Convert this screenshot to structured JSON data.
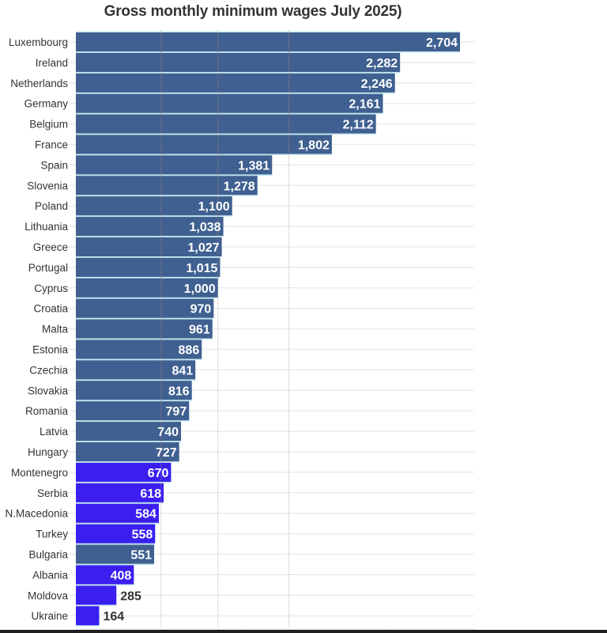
{
  "chart_data": {
    "type": "bar",
    "orientation": "horizontal",
    "title": "Gross monthly minimum wages July 2025)",
    "xlabel": "",
    "ylabel": "",
    "xlim": [
      0,
      3000
    ],
    "grid": true,
    "legend": "none",
    "reference_lines": [
      600,
      1000,
      1500
    ],
    "colors": {
      "eu": "#3F6090",
      "non_eu": "#3A1FF0",
      "separator": "#C4E7F0",
      "label_inside": "#ffffff",
      "label_outside": "#333333"
    },
    "categories": [
      "Luxembourg",
      "Ireland",
      "Netherlands",
      "Germany",
      "Belgium",
      "France",
      "Spain",
      "Slovenia",
      "Poland",
      "Lithuania",
      "Greece",
      "Portugal",
      "Cyprus",
      "Croatia",
      "Malta",
      "Estonia",
      "Czechia",
      "Slovakia",
      "Romania",
      "Latvia",
      "Hungary",
      "Montenegro",
      "Serbia",
      "N.Macedonia",
      "Turkey",
      "Bulgaria",
      "Albania",
      "Moldova",
      "Ukraine"
    ],
    "values": [
      2704,
      2282,
      2246,
      2161,
      2112,
      1802,
      1381,
      1278,
      1100,
      1038,
      1027,
      1015,
      1000,
      970,
      961,
      886,
      841,
      816,
      797,
      740,
      727,
      670,
      618,
      584,
      558,
      551,
      408,
      285,
      164
    ],
    "value_labels": [
      "2,704",
      "2,282",
      "2,246",
      "2,161",
      "2,112",
      "1,802",
      "1,381",
      "1,278",
      "1,100",
      "1,038",
      "1,027",
      "1,015",
      "1,000",
      "970",
      "961",
      "886",
      "841",
      "816",
      "797",
      "740",
      "727",
      "670",
      "618",
      "584",
      "558",
      "551",
      "408",
      "285",
      "164"
    ],
    "groups": [
      "eu",
      "eu",
      "eu",
      "eu",
      "eu",
      "eu",
      "eu",
      "eu",
      "eu",
      "eu",
      "eu",
      "eu",
      "eu",
      "eu",
      "eu",
      "eu",
      "eu",
      "eu",
      "eu",
      "eu",
      "eu",
      "non_eu",
      "non_eu",
      "non_eu",
      "non_eu",
      "eu",
      "non_eu",
      "non_eu",
      "non_eu"
    ]
  }
}
